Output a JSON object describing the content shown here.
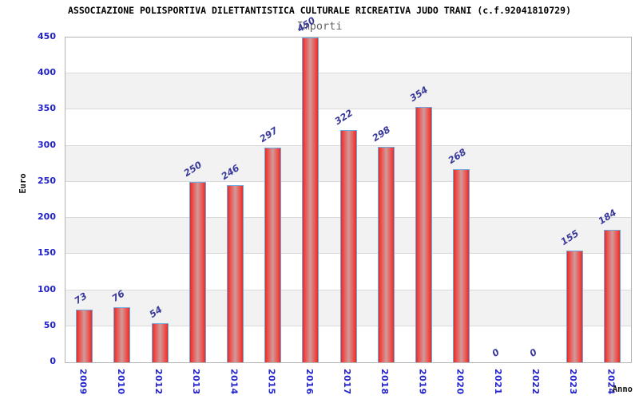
{
  "header": {
    "title": "ASSOCIAZIONE POLISPORTIVA DILETTANTISTICA CULTURALE RICREATIVA JUDO TRANI (c.f.92041810729)",
    "subtitle": "Importi"
  },
  "chart_data": {
    "type": "bar",
    "title": "Importi",
    "xlabel": "Anno",
    "ylabel": "Euro",
    "categories": [
      "2009",
      "2010",
      "2012",
      "2013",
      "2014",
      "2015",
      "2016",
      "2017",
      "2018",
      "2019",
      "2020",
      "2021",
      "2022",
      "2023",
      "2024"
    ],
    "values": [
      73,
      76,
      54,
      250,
      246,
      297,
      450,
      322,
      298,
      354,
      268,
      0,
      0,
      155,
      184
    ],
    "yticks": [
      0,
      50,
      100,
      150,
      200,
      250,
      300,
      350,
      400,
      450
    ],
    "ylim": [
      0,
      450
    ],
    "ytick_step": 50,
    "grid": "horizontal gridlines every 50 with alternating gray bands",
    "legend": "none",
    "bar_value_labels_rotated": true,
    "x_tick_labels_rotated_90": true,
    "colors": {
      "bar_fill": "#e02e2a",
      "bar_fill_light": "#ef4a45",
      "bar_fill_center": "#cf9b9b",
      "bar_border": "#6fa8dc",
      "tick_label": "#2222cc",
      "value_label": "#39399b",
      "band": "#f2f2f2",
      "gridline": "#d9d9d9",
      "plot_border": "#b5b5b5",
      "subtitle": "#666666",
      "title": "#000000"
    }
  }
}
